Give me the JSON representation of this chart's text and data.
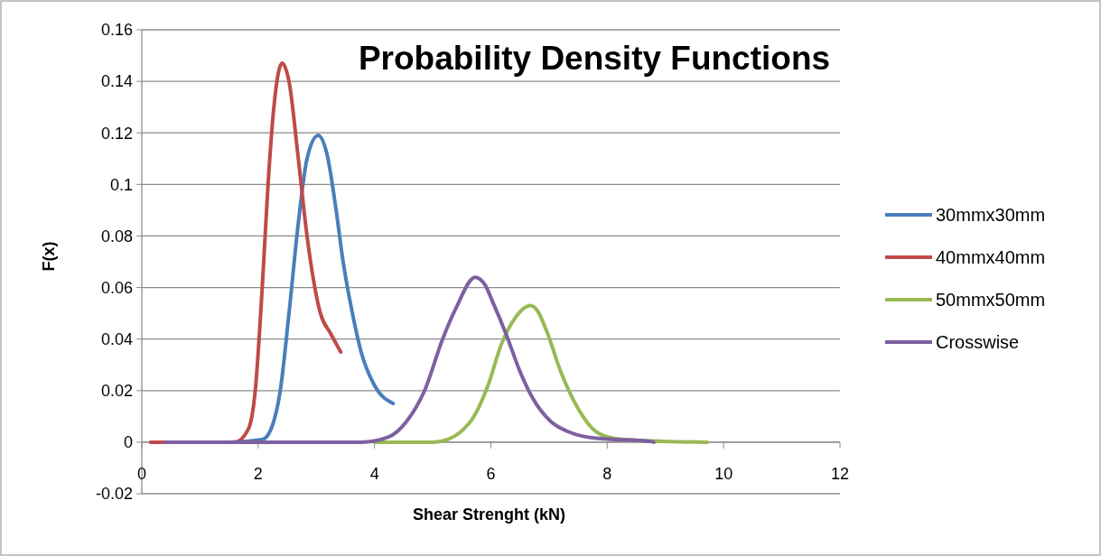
{
  "chart_data": {
    "type": "line",
    "title": "Probability Density Functions",
    "xlabel": "Shear Strenght (kN)",
    "ylabel": "F(x)",
    "xlim": [
      0,
      12
    ],
    "xticks": [
      0,
      2,
      4,
      6,
      8,
      10,
      12
    ],
    "ylim": [
      -0.02,
      0.16
    ],
    "yticks": [
      -0.02,
      0,
      0.02,
      0.04,
      0.06,
      0.08,
      0.1,
      0.12,
      0.14,
      0.16
    ],
    "grid": "y",
    "legend": "right",
    "marker": "none",
    "line_style": "solid",
    "series": [
      {
        "name": "30mmx30mm",
        "color": "#4a7ebb",
        "x": [
          0.4,
          1.5,
          2.07,
          2.22,
          2.38,
          2.53,
          2.69,
          2.84,
          3.03,
          3.18,
          3.34,
          3.46,
          3.62,
          3.77,
          4.0,
          4.32
        ],
        "values": [
          0,
          0,
          0.001,
          0.005,
          0.02,
          0.05,
          0.085,
          0.11,
          0.119,
          0.112,
          0.09,
          0.07,
          0.05,
          0.035,
          0.022,
          0.015
        ]
      },
      {
        "name": "40mmx40mm",
        "color": "#be4b48",
        "x": [
          0.15,
          1.0,
          1.6,
          1.83,
          1.95,
          2.07,
          2.17,
          2.27,
          2.41,
          2.53,
          2.69,
          2.84,
          3.07,
          3.25,
          3.42
        ],
        "values": [
          0,
          0,
          0,
          0.005,
          0.02,
          0.06,
          0.1,
          0.13,
          0.147,
          0.14,
          0.11,
          0.08,
          0.05,
          0.042,
          0.035
        ]
      },
      {
        "name": "50mmx50mm",
        "color": "#98b954",
        "x": [
          4.0,
          5.0,
          5.25,
          5.48,
          5.71,
          5.95,
          6.18,
          6.41,
          6.68,
          6.8,
          6.96,
          7.19,
          7.5,
          7.81,
          8.12,
          8.74,
          9.72
        ],
        "values": [
          0,
          0,
          0.001,
          0.004,
          0.01,
          0.022,
          0.038,
          0.048,
          0.053,
          0.051,
          0.043,
          0.028,
          0.013,
          0.004,
          0.0015,
          0.0005,
          0
        ]
      },
      {
        "name": "Crosswise",
        "color": "#7d60a0",
        "x": [
          0.4,
          2.0,
          3.77,
          4.24,
          4.55,
          4.86,
          5.17,
          5.4,
          5.73,
          5.9,
          6.02,
          6.26,
          6.49,
          6.72,
          7.03,
          7.34,
          7.81,
          8.74,
          8.8
        ],
        "values": [
          0,
          0,
          0,
          0.002,
          0.008,
          0.02,
          0.04,
          0.052,
          0.064,
          0.061,
          0.055,
          0.042,
          0.028,
          0.017,
          0.008,
          0.004,
          0.0015,
          0.0003,
          0
        ]
      }
    ]
  }
}
